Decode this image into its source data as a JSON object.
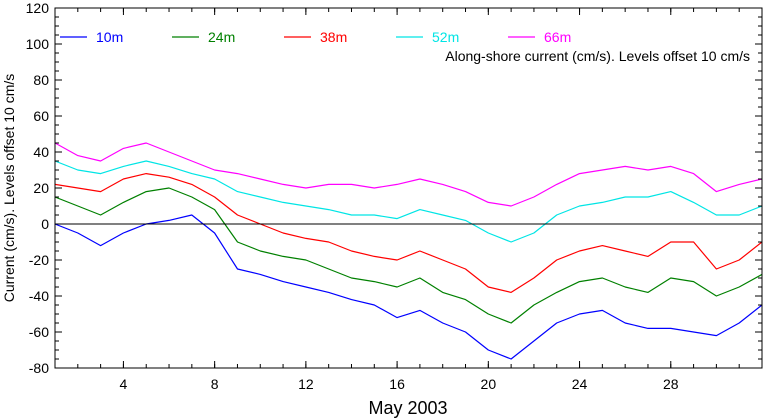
{
  "chart_data": {
    "type": "line",
    "title": "",
    "annotation": "Along-shore current (cm/s). Levels offset 10 cm/s",
    "xlabel": "May 2003",
    "ylabel": "Current (cm/s). Levels offset 10 cm/s",
    "xlim": [
      1,
      32
    ],
    "ylim": [
      -80,
      120
    ],
    "x_ticks": [
      4,
      8,
      12,
      16,
      20,
      24,
      28
    ],
    "x_tick_labels": [
      "4",
      "8",
      "12",
      "16",
      "20",
      "24",
      "28"
    ],
    "y_ticks": [
      -80,
      -60,
      -40,
      -20,
      0,
      20,
      40,
      60,
      80,
      100,
      120
    ],
    "y_tick_labels": [
      "-80",
      "-60",
      "-40",
      "-20",
      "0",
      "20",
      "40",
      "60",
      "80",
      "100",
      "120"
    ],
    "zero_line": true,
    "grid": false,
    "legend_position": "top-left",
    "series": [
      {
        "name": "10m",
        "color": "#0000ff",
        "x": [
          1,
          2,
          3,
          4,
          5,
          6,
          7,
          8,
          9,
          10,
          11,
          12,
          13,
          14,
          15,
          16,
          17,
          18,
          19,
          20,
          21,
          22,
          23,
          24,
          25,
          26,
          27,
          28,
          29,
          30,
          31,
          32
        ],
        "values": [
          0,
          -5,
          -12,
          -5,
          0,
          2,
          5,
          -5,
          -25,
          -28,
          -32,
          -35,
          -38,
          -42,
          -45,
          -52,
          -48,
          -55,
          -60,
          -70,
          -75,
          -65,
          -55,
          -50,
          -48,
          -55,
          -58,
          -58,
          -60,
          -62,
          -55,
          -45
        ]
      },
      {
        "name": "24m",
        "color": "#008000",
        "x": [
          1,
          2,
          3,
          4,
          5,
          6,
          7,
          8,
          9,
          10,
          11,
          12,
          13,
          14,
          15,
          16,
          17,
          18,
          19,
          20,
          21,
          22,
          23,
          24,
          25,
          26,
          27,
          28,
          29,
          30,
          31,
          32
        ],
        "values": [
          15,
          10,
          5,
          12,
          18,
          20,
          15,
          8,
          -10,
          -15,
          -18,
          -20,
          -25,
          -30,
          -32,
          -35,
          -30,
          -38,
          -42,
          -50,
          -55,
          -45,
          -38,
          -32,
          -30,
          -35,
          -38,
          -30,
          -32,
          -40,
          -35,
          -28
        ]
      },
      {
        "name": "38m",
        "color": "#ff0000",
        "x": [
          1,
          2,
          3,
          4,
          5,
          6,
          7,
          8,
          9,
          10,
          11,
          12,
          13,
          14,
          15,
          16,
          17,
          18,
          19,
          20,
          21,
          22,
          23,
          24,
          25,
          26,
          27,
          28,
          29,
          30,
          31,
          32
        ],
        "values": [
          22,
          20,
          18,
          25,
          28,
          26,
          22,
          15,
          5,
          0,
          -5,
          -8,
          -10,
          -15,
          -18,
          -20,
          -15,
          -20,
          -25,
          -35,
          -38,
          -30,
          -20,
          -15,
          -12,
          -15,
          -18,
          -10,
          -10,
          -25,
          -20,
          -10
        ]
      },
      {
        "name": "52m",
        "color": "#00e5e5",
        "x": [
          1,
          2,
          3,
          4,
          5,
          6,
          7,
          8,
          9,
          10,
          11,
          12,
          13,
          14,
          15,
          16,
          17,
          18,
          19,
          20,
          21,
          22,
          23,
          24,
          25,
          26,
          27,
          28,
          29,
          30,
          31,
          32
        ],
        "values": [
          35,
          30,
          28,
          32,
          35,
          32,
          28,
          25,
          18,
          15,
          12,
          10,
          8,
          5,
          5,
          3,
          8,
          5,
          2,
          -5,
          -10,
          -5,
          5,
          10,
          12,
          15,
          15,
          18,
          12,
          5,
          5,
          10
        ]
      },
      {
        "name": "66m",
        "color": "#ff00ff",
        "x": [
          1,
          2,
          3,
          4,
          5,
          6,
          7,
          8,
          9,
          10,
          11,
          12,
          13,
          14,
          15,
          16,
          17,
          18,
          19,
          20,
          21,
          22,
          23,
          24,
          25,
          26,
          27,
          28,
          29,
          30,
          31,
          32
        ],
        "values": [
          45,
          38,
          35,
          42,
          45,
          40,
          35,
          30,
          28,
          25,
          22,
          20,
          22,
          22,
          20,
          22,
          25,
          22,
          18,
          12,
          10,
          15,
          22,
          28,
          30,
          32,
          30,
          32,
          28,
          18,
          22,
          25
        ]
      }
    ]
  }
}
